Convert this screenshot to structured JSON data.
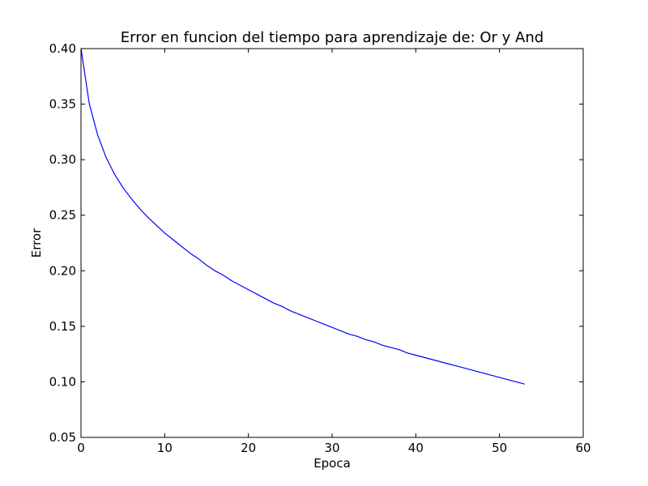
{
  "chart_data": {
    "type": "line",
    "title": "Error en funcion del tiempo para aprendizaje de: Or y And",
    "xlabel": "Epoca",
    "ylabel": "Error",
    "xlim": [
      0,
      60
    ],
    "ylim": [
      0.05,
      0.4
    ],
    "xticks": [
      "0",
      "10",
      "20",
      "30",
      "40",
      "50",
      "60"
    ],
    "yticks": [
      "0.05",
      "0.10",
      "0.15",
      "0.20",
      "0.25",
      "0.30",
      "0.35",
      "0.40"
    ],
    "grid": false,
    "series": [
      {
        "color": "#0000ff",
        "x": [
          0,
          1,
          2,
          3,
          4,
          5,
          6,
          7,
          8,
          9,
          10,
          11,
          12,
          13,
          14,
          15,
          16,
          17,
          18,
          19,
          20,
          21,
          22,
          23,
          24,
          25,
          26,
          27,
          28,
          29,
          30,
          31,
          32,
          33,
          34,
          35,
          36,
          37,
          38,
          39,
          40,
          41,
          42,
          43,
          44,
          45,
          46,
          47,
          48,
          49,
          50,
          51,
          52,
          53
        ],
        "y": [
          0.4,
          0.35,
          0.322,
          0.302,
          0.287,
          0.275,
          0.265,
          0.256,
          0.248,
          0.241,
          0.234,
          0.228,
          0.222,
          0.216,
          0.211,
          0.205,
          0.2,
          0.196,
          0.191,
          0.187,
          0.183,
          0.179,
          0.175,
          0.171,
          0.168,
          0.164,
          0.161,
          0.158,
          0.155,
          0.152,
          0.149,
          0.146,
          0.143,
          0.141,
          0.138,
          0.136,
          0.133,
          0.131,
          0.129,
          0.126,
          0.124,
          0.122,
          0.12,
          0.118,
          0.116,
          0.114,
          0.112,
          0.11,
          0.108,
          0.106,
          0.104,
          0.102,
          0.1,
          0.098
        ]
      }
    ]
  }
}
